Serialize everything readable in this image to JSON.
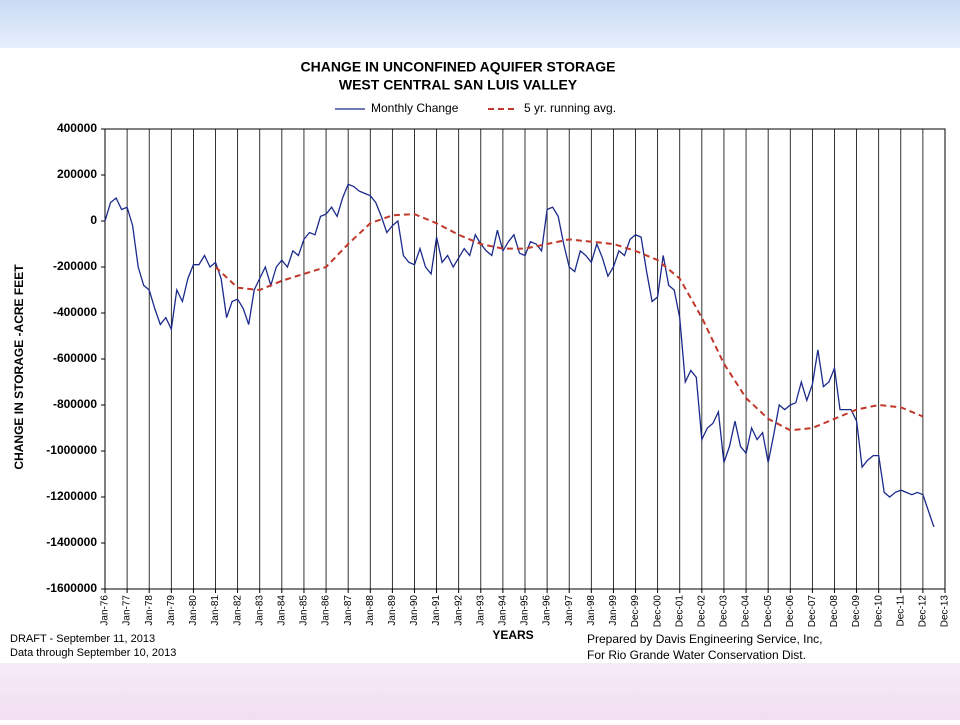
{
  "chart_data": {
    "type": "line",
    "title": "CHANGE IN UNCONFINED AQUIFER STORAGE",
    "subtitle": "WEST CENTRAL SAN LUIS VALLEY",
    "x_label": "YEARS",
    "y_label": "CHANGE IN STORAGE -ACRE FEET",
    "notes": [
      "DRAFT - September 11, 2013",
      "Data through September 10, 2013"
    ],
    "credits": [
      "Prepared by Davis Engineering Service, Inc,",
      "For Rio Grande Water Conservation Dist."
    ],
    "xlim": [
      1976,
      2014
    ],
    "xticks": [
      {
        "value": 1976,
        "label": "Jan-76"
      },
      {
        "value": 1977,
        "label": "Jan-77"
      },
      {
        "value": 1978,
        "label": "Jan-78"
      },
      {
        "value": 1979,
        "label": "Jan-79"
      },
      {
        "value": 1980,
        "label": "Jan-80"
      },
      {
        "value": 1981,
        "label": "Jan-81"
      },
      {
        "value": 1982,
        "label": "Jan-82"
      },
      {
        "value": 1983,
        "label": "Jan-83"
      },
      {
        "value": 1984,
        "label": "Jan-84"
      },
      {
        "value": 1985,
        "label": "Jan-85"
      },
      {
        "value": 1986,
        "label": "Jan-86"
      },
      {
        "value": 1987,
        "label": "Jan-87"
      },
      {
        "value": 1988,
        "label": "Jan-88"
      },
      {
        "value": 1989,
        "label": "Jan-89"
      },
      {
        "value": 1990,
        "label": "Jan-90"
      },
      {
        "value": 1991,
        "label": "Jan-91"
      },
      {
        "value": 1992,
        "label": "Jan-92"
      },
      {
        "value": 1993,
        "label": "Jan-93"
      },
      {
        "value": 1994,
        "label": "Jan-94"
      },
      {
        "value": 1995,
        "label": "Jan-95"
      },
      {
        "value": 1996,
        "label": "Jan-96"
      },
      {
        "value": 1997,
        "label": "Jan-97"
      },
      {
        "value": 1998,
        "label": "Jan-98"
      },
      {
        "value": 1999,
        "label": "Jan-99"
      },
      {
        "value": 2000,
        "label": "Dec-99"
      },
      {
        "value": 2001,
        "label": "Dec-00"
      },
      {
        "value": 2002,
        "label": "Dec-01"
      },
      {
        "value": 2003,
        "label": "Dec-02"
      },
      {
        "value": 2004,
        "label": "Dec-03"
      },
      {
        "value": 2005,
        "label": "Dec-04"
      },
      {
        "value": 2006,
        "label": "Dec-05"
      },
      {
        "value": 2007,
        "label": "Dec-06"
      },
      {
        "value": 2008,
        "label": "Dec-07"
      },
      {
        "value": 2009,
        "label": "Dec-08"
      },
      {
        "value": 2010,
        "label": "Dec-09"
      },
      {
        "value": 2011,
        "label": "Dec-10"
      },
      {
        "value": 2012,
        "label": "Dec-11"
      },
      {
        "value": 2013,
        "label": "Dec-12"
      },
      {
        "value": 2014,
        "label": "Dec-13"
      }
    ],
    "ylim": [
      -1600000,
      400000
    ],
    "yticks": [
      400000,
      200000,
      0,
      -200000,
      -400000,
      -600000,
      -800000,
      -1000000,
      -1200000,
      -1400000,
      -1600000
    ],
    "grid": true,
    "series": [
      {
        "name": "Monthly Change",
        "color": "#1c2a8c",
        "dashed": false,
        "x": [
          1976,
          1976.25,
          1976.5,
          1976.75,
          1977,
          1977.25,
          1977.5,
          1977.75,
          1978,
          1978.25,
          1978.5,
          1978.75,
          1979,
          1979.25,
          1979.5,
          1979.75,
          1980,
          1980.25,
          1980.5,
          1980.75,
          1981,
          1981.25,
          1981.5,
          1981.75,
          1982,
          1982.25,
          1982.5,
          1982.75,
          1983,
          1983.25,
          1983.5,
          1983.75,
          1984,
          1984.25,
          1984.5,
          1984.75,
          1985,
          1985.25,
          1985.5,
          1985.75,
          1986,
          1986.25,
          1986.5,
          1986.75,
          1987,
          1987.25,
          1987.5,
          1987.75,
          1988,
          1988.25,
          1988.5,
          1988.75,
          1989,
          1989.25,
          1989.5,
          1989.75,
          1990,
          1990.25,
          1990.5,
          1990.75,
          1991,
          1991.25,
          1991.5,
          1991.75,
          1992,
          1992.25,
          1992.5,
          1992.75,
          1993,
          1993.25,
          1993.5,
          1993.75,
          1994,
          1994.25,
          1994.5,
          1994.75,
          1995,
          1995.25,
          1995.5,
          1995.75,
          1996,
          1996.25,
          1996.5,
          1996.75,
          1997,
          1997.25,
          1997.5,
          1997.75,
          1998,
          1998.25,
          1998.5,
          1998.75,
          1999,
          1999.25,
          1999.5,
          1999.75,
          2000,
          2000.25,
          2000.5,
          2000.75,
          2001,
          2001.25,
          2001.5,
          2001.75,
          2002,
          2002.25,
          2002.5,
          2002.75,
          2003,
          2003.25,
          2003.5,
          2003.75,
          2004,
          2004.25,
          2004.5,
          2004.75,
          2005,
          2005.25,
          2005.5,
          2005.75,
          2006,
          2006.25,
          2006.5,
          2006.75,
          2007,
          2007.25,
          2007.5,
          2007.75,
          2008,
          2008.25,
          2008.5,
          2008.75,
          2009,
          2009.25,
          2009.5,
          2009.75,
          2010,
          2010.25,
          2010.5,
          2010.75,
          2011,
          2011.25,
          2011.5,
          2011.75,
          2012,
          2012.25,
          2012.5,
          2012.75,
          2013,
          2013.5
        ],
        "values": [
          0,
          80000,
          100000,
          50000,
          60000,
          -20000,
          -200000,
          -280000,
          -300000,
          -380000,
          -450000,
          -420000,
          -470000,
          -300000,
          -350000,
          -250000,
          -190000,
          -190000,
          -150000,
          -200000,
          -180000,
          -250000,
          -420000,
          -350000,
          -340000,
          -380000,
          -450000,
          -300000,
          -250000,
          -200000,
          -280000,
          -200000,
          -170000,
          -200000,
          -130000,
          -150000,
          -80000,
          -50000,
          -60000,
          20000,
          30000,
          60000,
          20000,
          100000,
          160000,
          150000,
          130000,
          120000,
          110000,
          80000,
          20000,
          -50000,
          -20000,
          0,
          -150000,
          -180000,
          -190000,
          -120000,
          -200000,
          -230000,
          -70000,
          -180000,
          -150000,
          -200000,
          -160000,
          -120000,
          -150000,
          -60000,
          -100000,
          -130000,
          -150000,
          -40000,
          -130000,
          -90000,
          -60000,
          -140000,
          -150000,
          -90000,
          -100000,
          -130000,
          50000,
          60000,
          20000,
          -100000,
          -200000,
          -220000,
          -130000,
          -150000,
          -180000,
          -100000,
          -160000,
          -240000,
          -200000,
          -130000,
          -150000,
          -80000,
          -60000,
          -70000,
          -220000,
          -350000,
          -330000,
          -150000,
          -280000,
          -300000,
          -420000,
          -700000,
          -650000,
          -680000,
          -950000,
          -900000,
          -880000,
          -830000,
          -1050000,
          -980000,
          -870000,
          -980000,
          -1010000,
          -900000,
          -950000,
          -920000,
          -1050000,
          -930000,
          -800000,
          -820000,
          -800000,
          -790000,
          -700000,
          -780000,
          -710000,
          -560000,
          -720000,
          -700000,
          -640000,
          -820000,
          -820000,
          -820000,
          -870000,
          -1070000,
          -1040000,
          -1020000,
          -1020000,
          -1180000,
          -1200000,
          -1180000,
          -1170000,
          -1180000,
          -1190000,
          -1180000,
          -1190000,
          -1330000
        ]
      },
      {
        "name": "5 yr. running avg.",
        "color": "#c0392b",
        "dashed": true,
        "x": [
          1981,
          1982,
          1983,
          1984,
          1985,
          1986,
          1987,
          1988,
          1989,
          1990,
          1991,
          1992,
          1993,
          1994,
          1995,
          1996,
          1997,
          1998,
          1999,
          2000,
          2001,
          2002,
          2003,
          2004,
          2005,
          2006,
          2007,
          2008,
          2009,
          2010,
          2011,
          2012,
          2013
        ],
        "values": [
          -200000,
          -290000,
          -300000,
          -260000,
          -230000,
          -200000,
          -100000,
          -10000,
          25000,
          30000,
          -10000,
          -60000,
          -100000,
          -120000,
          -120000,
          -100000,
          -80000,
          -90000,
          -100000,
          -130000,
          -170000,
          -250000,
          -420000,
          -620000,
          -770000,
          -860000,
          -910000,
          -900000,
          -860000,
          -820000,
          -800000,
          -810000,
          -850000
        ]
      }
    ]
  }
}
